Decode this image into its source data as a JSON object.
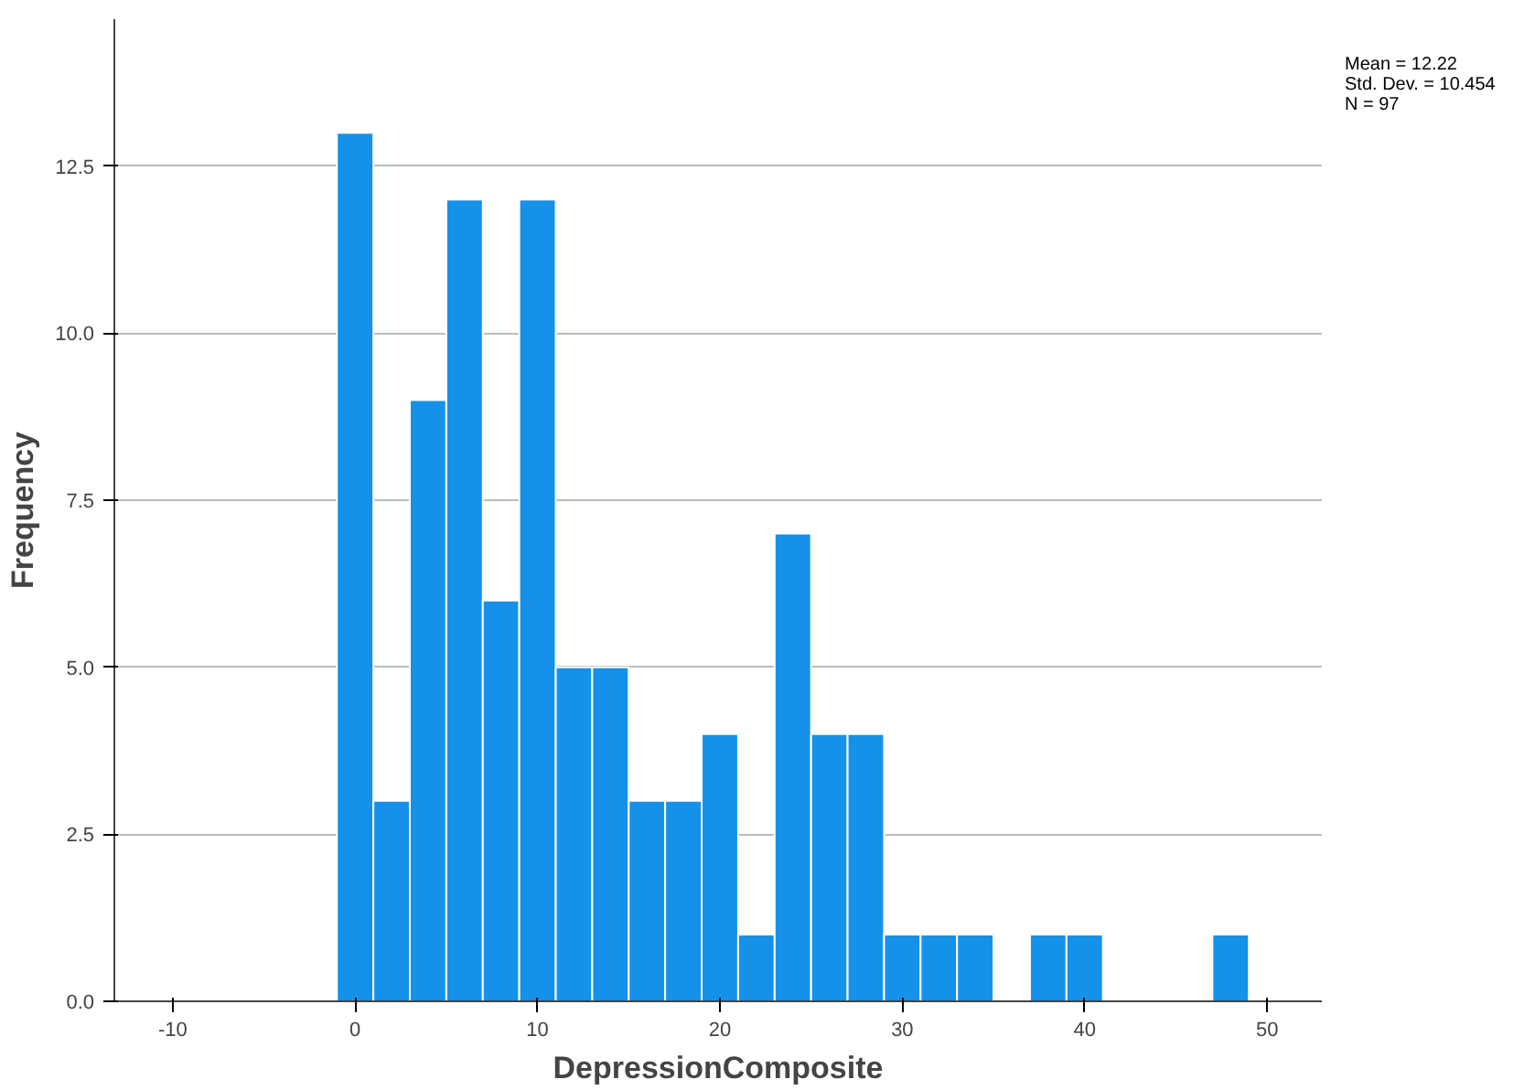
{
  "chart_data": {
    "type": "histogram",
    "xlabel": "DepressionComposite",
    "ylabel": "Frequency",
    "bins": [
      -1,
      1,
      3,
      5,
      7,
      9,
      11,
      13,
      15,
      17,
      19,
      21,
      23,
      25,
      27,
      29,
      31,
      33,
      35,
      37,
      39,
      41,
      43,
      45,
      47,
      49
    ],
    "values": [
      13,
      3,
      9,
      12,
      6,
      12,
      5,
      5,
      3,
      3,
      4,
      1,
      7,
      4,
      4,
      1,
      1,
      1,
      0,
      1,
      1,
      0,
      0,
      0,
      1
    ],
    "color": "#1591ea",
    "xlim": [
      -13.2,
      53
    ],
    "xticks": [
      -10,
      0,
      10,
      20,
      30,
      40,
      50
    ],
    "ylim": [
      0,
      14.7
    ],
    "yticks": [
      {
        "value": 0,
        "label": "0.0"
      },
      2.5,
      {
        "value": 5,
        "label": "5.0"
      },
      7.5,
      {
        "value": 10,
        "label": "10.0"
      },
      12.5
    ],
    "grid": "y",
    "annotations": [
      "Mean = 12.22",
      "Std. Dev. = 10.454",
      "N = 97"
    ]
  }
}
